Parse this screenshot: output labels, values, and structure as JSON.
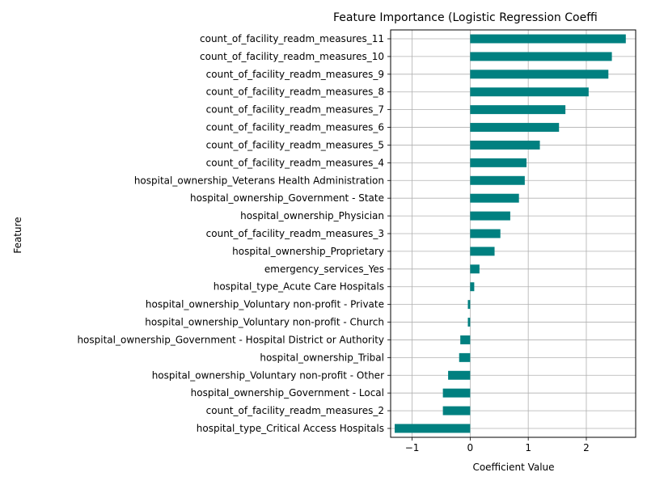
{
  "chart_data": {
    "type": "bar",
    "orientation": "horizontal",
    "title": "Feature Importance (Logistic Regression Coeffi",
    "xlabel": "Coefficient Value",
    "ylabel": "Feature",
    "xlim": [
      -1.3,
      2.85
    ],
    "xticks": [
      -1,
      0,
      1,
      2
    ],
    "xtick_labels": [
      "−1",
      "0",
      "1",
      "2"
    ],
    "grid": true,
    "bar_color": "#008080",
    "grid_color": "#b0b0b0",
    "categories": [
      "count_of_facility_readm_measures_11",
      "count_of_facility_readm_measures_10",
      "count_of_facility_readm_measures_9",
      "count_of_facility_readm_measures_8",
      "count_of_facility_readm_measures_7",
      "count_of_facility_readm_measures_6",
      "count_of_facility_readm_measures_5",
      "count_of_facility_readm_measures_4",
      "hospital_ownership_Veterans Health Administration",
      "hospital_ownership_Government - State",
      "hospital_ownership_Physician",
      "count_of_facility_readm_measures_3",
      "hospital_ownership_Proprietary",
      "emergency_services_Yes",
      "hospital_type_Acute Care Hospitals",
      "hospital_ownership_Voluntary non-profit - Private",
      "hospital_ownership_Voluntary non-profit - Church",
      "hospital_ownership_Government - Hospital District or Authority",
      "hospital_ownership_Tribal",
      "hospital_ownership_Voluntary non-profit - Other",
      "hospital_ownership_Government - Local",
      "count_of_facility_readm_measures_2",
      "hospital_type_Critical Access Hospitals"
    ],
    "values": [
      2.68,
      2.44,
      2.38,
      2.04,
      1.64,
      1.53,
      1.2,
      0.97,
      0.94,
      0.84,
      0.69,
      0.52,
      0.42,
      0.16,
      0.07,
      -0.04,
      -0.04,
      -0.17,
      -0.19,
      -0.38,
      -0.47,
      -0.47,
      -1.3
    ]
  }
}
